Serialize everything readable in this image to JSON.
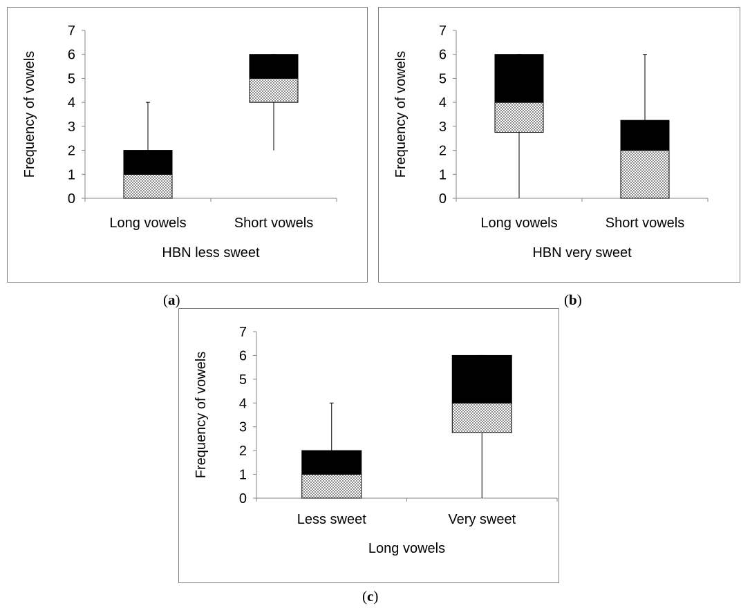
{
  "colors": {
    "box_lower": "#8c8c8c",
    "box_upper": "#000000",
    "axis": "#868686",
    "whisker": "#000000",
    "frame": "#7f7f7f"
  },
  "captions": {
    "a": "a",
    "b": "b",
    "c": "c"
  },
  "chart_data": [
    {
      "type": "box",
      "panel": "a",
      "title": "",
      "ylabel": "Frequency of vowels",
      "xlabel": "HBN less sweet",
      "ylim": [
        0,
        7
      ],
      "yticks": [
        "0",
        "1",
        "2",
        "3",
        "4",
        "5",
        "6",
        "7"
      ],
      "categories": [
        "Long vowels",
        "Short vowels"
      ],
      "boxes": [
        {
          "min": 0,
          "q1": 0,
          "median": 1,
          "q3": 2,
          "max": 4
        },
        {
          "min": 2,
          "q1": 4,
          "median": 5,
          "q3": 6,
          "max": 6
        }
      ],
      "grid": false
    },
    {
      "type": "box",
      "panel": "b",
      "title": "",
      "ylabel": "Frequency of vowels",
      "xlabel": "HBN very sweet",
      "ylim": [
        0,
        7
      ],
      "yticks": [
        "0",
        "1",
        "2",
        "3",
        "4",
        "5",
        "6",
        "7"
      ],
      "categories": [
        "Long vowels",
        "Short vowels"
      ],
      "boxes": [
        {
          "min": 0,
          "q1": 2.75,
          "median": 4,
          "q3": 6,
          "max": 6
        },
        {
          "min": 0,
          "q1": 0,
          "median": 2,
          "q3": 3.25,
          "max": 6
        }
      ],
      "grid": false
    },
    {
      "type": "box",
      "panel": "c",
      "title": "",
      "ylabel": "Frequency of vowels",
      "xlabel": "Long vowels",
      "ylim": [
        0,
        7
      ],
      "yticks": [
        "0",
        "1",
        "2",
        "3",
        "4",
        "5",
        "6",
        "7"
      ],
      "categories": [
        "Less sweet",
        "Very sweet"
      ],
      "boxes": [
        {
          "min": 0,
          "q1": 0,
          "median": 1,
          "q3": 2,
          "max": 4
        },
        {
          "min": 0,
          "q1": 2.75,
          "median": 4,
          "q3": 6,
          "max": 6
        }
      ],
      "grid": false
    }
  ]
}
